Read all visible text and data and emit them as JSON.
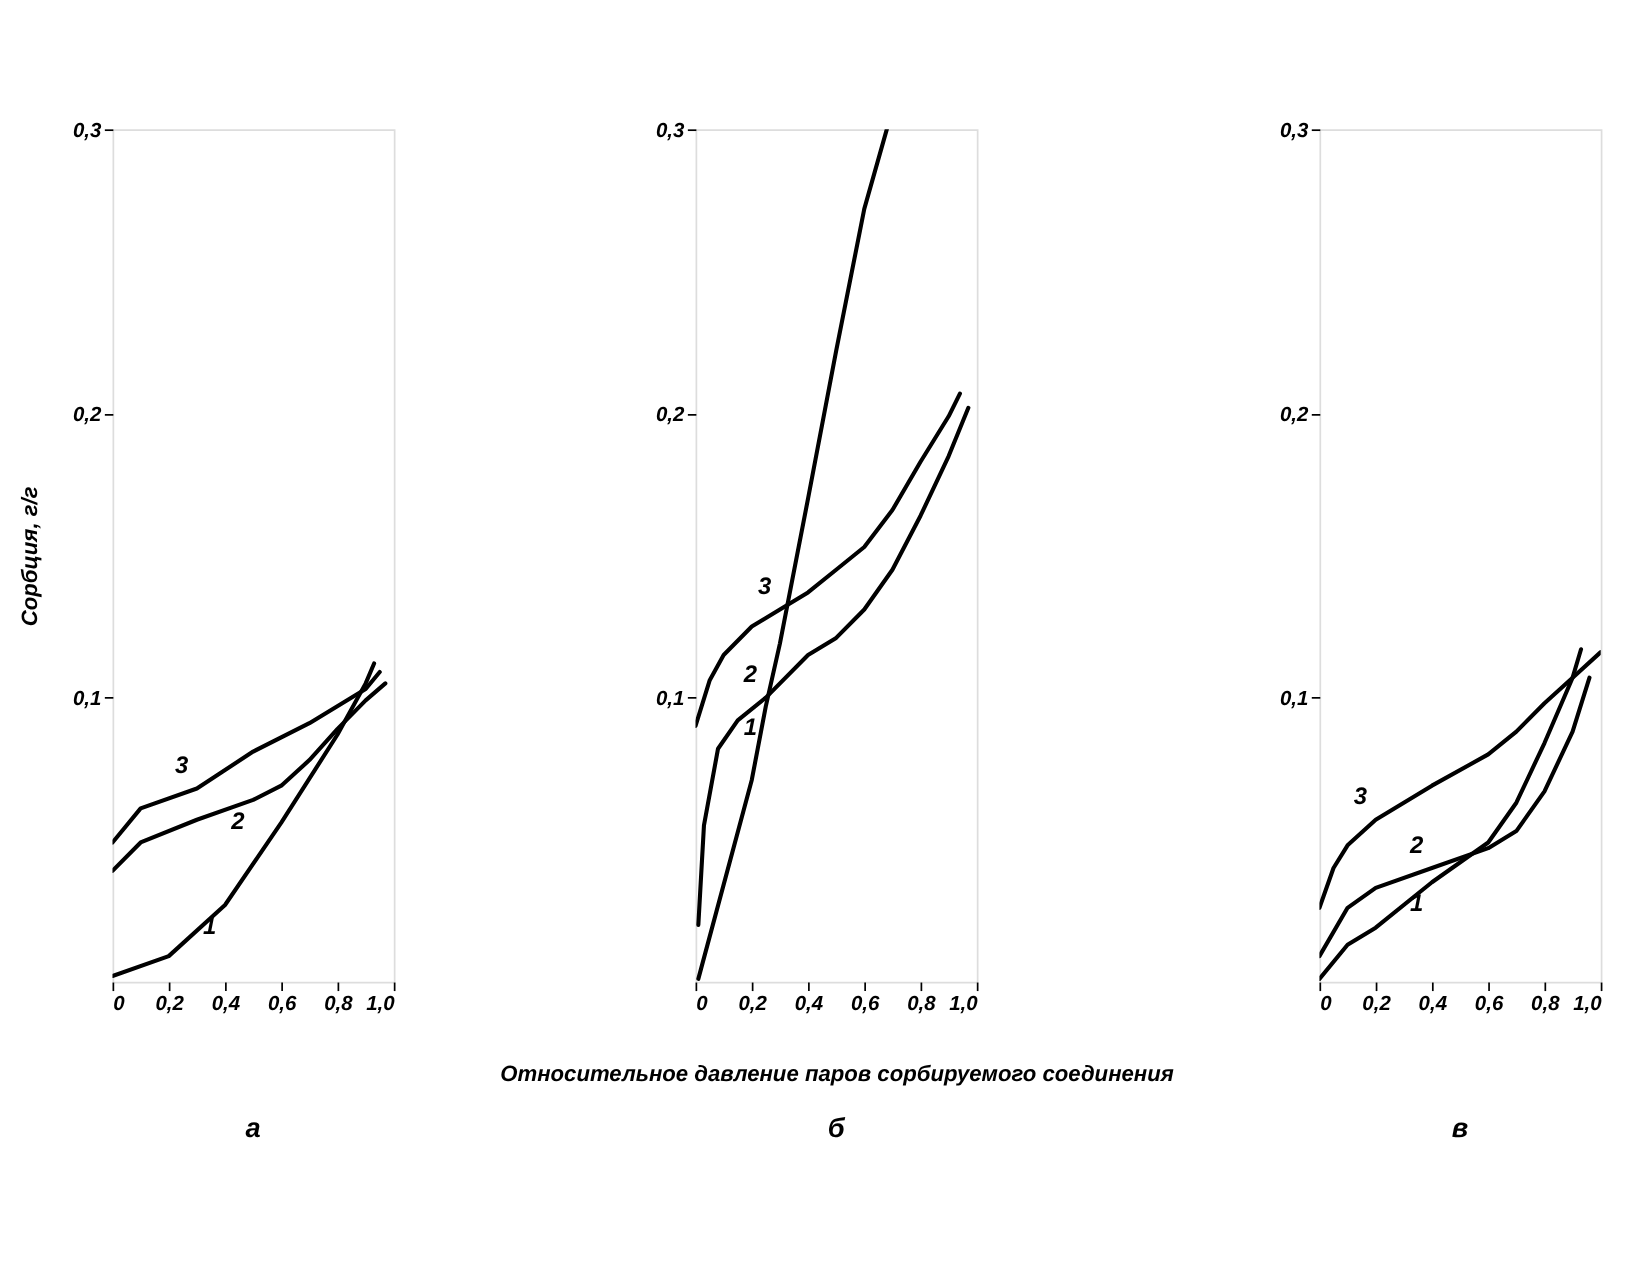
{
  "chart_data": [
    {
      "type": "line",
      "title": "а",
      "ylabel": "Сорбция, г/г",
      "xlim": [
        0,
        1.0
      ],
      "ylim": [
        0,
        0.3
      ],
      "xticks": [
        {
          "value": 0,
          "label": "0"
        },
        {
          "value": 0.2,
          "label": "0,2"
        },
        {
          "value": 0.4,
          "label": "0,4"
        },
        {
          "value": 0.6,
          "label": "0,6"
        },
        {
          "value": 0.8,
          "label": "0,8"
        },
        {
          "value": 1.0,
          "label": "1,0"
        }
      ],
      "yticks": [
        {
          "value": 0.1,
          "label": "0,1"
        },
        {
          "value": 0.2,
          "label": "0,2"
        },
        {
          "value": 0.3,
          "label": "0,3"
        }
      ],
      "series": [
        {
          "name": "1",
          "color": "#000000",
          "x": [
            0,
            0.2,
            0.4,
            0.6,
            0.8,
            0.9,
            0.93
          ],
          "values": [
            0.002,
            0.009,
            0.027,
            0.056,
            0.087,
            0.105,
            0.112
          ]
        },
        {
          "name": "2",
          "color": "#000000",
          "x": [
            0,
            0.1,
            0.3,
            0.5,
            0.6,
            0.7,
            0.8,
            0.9,
            0.97
          ],
          "values": [
            0.039,
            0.049,
            0.057,
            0.064,
            0.069,
            0.078,
            0.089,
            0.099,
            0.105
          ]
        },
        {
          "name": "3",
          "color": "#000000",
          "x": [
            0,
            0.1,
            0.3,
            0.5,
            0.7,
            0.9,
            0.95
          ],
          "values": [
            0.049,
            0.061,
            0.068,
            0.081,
            0.091,
            0.103,
            0.109
          ]
        }
      ]
    },
    {
      "type": "line",
      "title": "б",
      "xlabel": "Относительное давление паров сорбируемого соединения",
      "xlim": [
        0,
        1.0
      ],
      "ylim": [
        0,
        0.3
      ],
      "xticks": [
        {
          "value": 0,
          "label": "0"
        },
        {
          "value": 0.2,
          "label": "0,2"
        },
        {
          "value": 0.4,
          "label": "0,4"
        },
        {
          "value": 0.6,
          "label": "0,6"
        },
        {
          "value": 0.8,
          "label": "0,8"
        },
        {
          "value": 1.0,
          "label": "1,0"
        }
      ],
      "yticks": [
        {
          "value": 0.1,
          "label": "0,1"
        },
        {
          "value": 0.2,
          "label": "0,2"
        },
        {
          "value": 0.3,
          "label": "0,3"
        }
      ],
      "series": [
        {
          "name": "1",
          "color": "#000000",
          "x": [
            0.01,
            0.2,
            0.25,
            0.3,
            0.4,
            0.5,
            0.6,
            0.68
          ],
          "values": [
            0.001,
            0.071,
            0.097,
            0.119,
            0.17,
            0.222,
            0.272,
            0.3
          ]
        },
        {
          "name": "2",
          "color": "#000000",
          "x": [
            0.01,
            0.03,
            0.08,
            0.15,
            0.25,
            0.4,
            0.5,
            0.6,
            0.7,
            0.8,
            0.9,
            0.97
          ],
          "values": [
            0.02,
            0.055,
            0.082,
            0.092,
            0.1,
            0.115,
            0.121,
            0.131,
            0.145,
            0.164,
            0.185,
            0.202
          ]
        },
        {
          "name": "3",
          "color": "#000000",
          "x": [
            0,
            0.05,
            0.1,
            0.2,
            0.3,
            0.4,
            0.5,
            0.6,
            0.7,
            0.8,
            0.9,
            0.94
          ],
          "values": [
            0.09,
            0.106,
            0.115,
            0.125,
            0.131,
            0.137,
            0.145,
            0.153,
            0.166,
            0.183,
            0.199,
            0.207
          ]
        }
      ]
    },
    {
      "type": "line",
      "title": "в",
      "xlim": [
        0,
        1.0
      ],
      "ylim": [
        0,
        0.3
      ],
      "xticks": [
        {
          "value": 0,
          "label": "0"
        },
        {
          "value": 0.2,
          "label": "0,2"
        },
        {
          "value": 0.4,
          "label": "0,4"
        },
        {
          "value": 0.6,
          "label": "0,6"
        },
        {
          "value": 0.8,
          "label": "0,8"
        },
        {
          "value": 1.0,
          "label": "1,0"
        }
      ],
      "yticks": [
        {
          "value": 0.1,
          "label": "0,1"
        },
        {
          "value": 0.2,
          "label": "0,2"
        },
        {
          "value": 0.3,
          "label": "0,3"
        }
      ],
      "series": [
        {
          "name": "1",
          "color": "#000000",
          "x": [
            0,
            0.1,
            0.2,
            0.4,
            0.6,
            0.7,
            0.8,
            0.9,
            0.93
          ],
          "values": [
            0.001,
            0.013,
            0.019,
            0.035,
            0.049,
            0.063,
            0.084,
            0.107,
            0.117
          ]
        },
        {
          "name": "2",
          "color": "#000000",
          "x": [
            0,
            0.1,
            0.2,
            0.4,
            0.6,
            0.7,
            0.8,
            0.9,
            0.96
          ],
          "values": [
            0.009,
            0.026,
            0.033,
            0.04,
            0.047,
            0.053,
            0.067,
            0.088,
            0.107
          ]
        },
        {
          "name": "3",
          "color": "#000000",
          "x": [
            0,
            0.05,
            0.1,
            0.2,
            0.4,
            0.6,
            0.7,
            0.8,
            0.9,
            1.0
          ],
          "values": [
            0.026,
            0.04,
            0.048,
            0.057,
            0.069,
            0.08,
            0.088,
            0.098,
            0.107,
            0.116
          ]
        }
      ]
    }
  ]
}
